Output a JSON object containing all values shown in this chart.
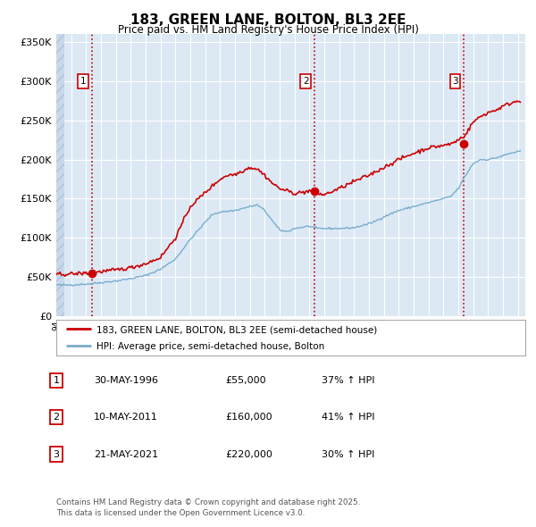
{
  "title": "183, GREEN LANE, BOLTON, BL3 2EE",
  "subtitle": "Price paid vs. HM Land Registry's House Price Index (HPI)",
  "plot_bg_color": "#dce9f5",
  "grid_color": "#ffffff",
  "year_start": 1994,
  "year_end": 2025,
  "ylim": [
    0,
    360000
  ],
  "yticks": [
    0,
    50000,
    100000,
    150000,
    200000,
    250000,
    300000,
    350000
  ],
  "ytick_labels": [
    "£0",
    "£50K",
    "£100K",
    "£150K",
    "£200K",
    "£250K",
    "£300K",
    "£350K"
  ],
  "sale_decimal": [
    1996.413,
    2011.36,
    2021.388
  ],
  "sale_prices": [
    55000,
    160000,
    220000
  ],
  "sale_labels": [
    "1",
    "2",
    "3"
  ],
  "sale_info": [
    {
      "num": "1",
      "date": "30-MAY-1996",
      "price": "£55,000",
      "hpi": "37% ↑ HPI"
    },
    {
      "num": "2",
      "date": "10-MAY-2011",
      "price": "£160,000",
      "hpi": "41% ↑ HPI"
    },
    {
      "num": "3",
      "date": "21-MAY-2021",
      "price": "£220,000",
      "hpi": "30% ↑ HPI"
    }
  ],
  "red_line_color": "#cc0000",
  "blue_line_color": "#7aadcc",
  "dashed_line_color": "#cc0000",
  "legend_label_red": "183, GREEN LANE, BOLTON, BL3 2EE (semi-detached house)",
  "legend_label_blue": "HPI: Average price, semi-detached house, Bolton",
  "footnote": "Contains HM Land Registry data © Crown copyright and database right 2025.\nThis data is licensed under the Open Government Licence v3.0."
}
